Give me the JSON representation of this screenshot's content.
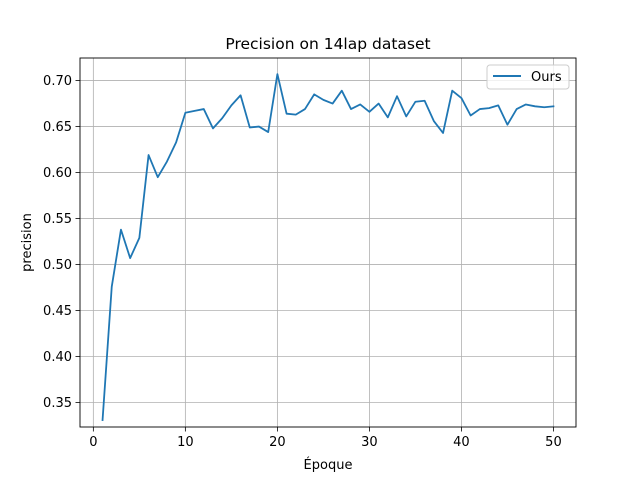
{
  "chart_data": {
    "type": "line",
    "title": "Precision on 14lap dataset",
    "xlabel": "Époque",
    "ylabel": "precision",
    "xlim": [
      -1.45,
      52.45
    ],
    "ylim": [
      0.3235,
      0.7245
    ],
    "xticks": [
      0,
      10,
      20,
      30,
      40,
      50
    ],
    "yticks": [
      0.35,
      0.4,
      0.45,
      0.5,
      0.55,
      0.6,
      0.65,
      0.7
    ],
    "ytick_labels": [
      "0.35",
      "0.40",
      "0.45",
      "0.50",
      "0.55",
      "0.60",
      "0.65",
      "0.70"
    ],
    "grid": true,
    "legend_position": "top-right",
    "colors": {
      "series": "#1f77b4",
      "grid": "#b0b0b0",
      "axis": "#000000"
    },
    "series": [
      {
        "name": "Ours",
        "x": [
          1,
          2,
          3,
          4,
          5,
          6,
          7,
          8,
          9,
          10,
          11,
          12,
          13,
          14,
          15,
          16,
          17,
          18,
          19,
          20,
          21,
          22,
          23,
          24,
          25,
          26,
          27,
          28,
          29,
          30,
          31,
          32,
          33,
          34,
          35,
          36,
          37,
          38,
          39,
          40,
          41,
          42,
          43,
          44,
          45,
          46,
          47,
          48,
          49,
          50
        ],
        "values": [
          0.331,
          0.476,
          0.538,
          0.507,
          0.529,
          0.619,
          0.595,
          0.612,
          0.633,
          0.665,
          0.667,
          0.669,
          0.648,
          0.659,
          0.673,
          0.684,
          0.649,
          0.65,
          0.644,
          0.707,
          0.664,
          0.663,
          0.669,
          0.685,
          0.679,
          0.675,
          0.689,
          0.669,
          0.674,
          0.666,
          0.675,
          0.66,
          0.683,
          0.661,
          0.677,
          0.678,
          0.656,
          0.643,
          0.689,
          0.681,
          0.662,
          0.669,
          0.67,
          0.673,
          0.652,
          0.669,
          0.674,
          0.672,
          0.671,
          0.672
        ]
      }
    ]
  }
}
